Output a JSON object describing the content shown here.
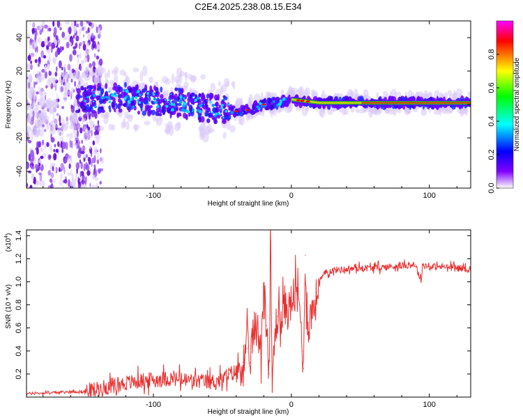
{
  "title": "C2E4.2025.238.08.15.E34",
  "chart_data": [
    {
      "type": "heatmap",
      "title": "C2E4.2025.238.08.15.E34",
      "xlabel": "Height of straight line (km)",
      "ylabel": "Frequency (Hz)",
      "xlim": [
        -192,
        130
      ],
      "ylim": [
        -50,
        50
      ],
      "xticks": [
        -100,
        0,
        100
      ],
      "yticks": [
        -40,
        -20,
        0,
        20,
        40
      ],
      "ridge": {
        "x": [
          -192,
          -150,
          -120,
          -100,
          -80,
          -60,
          -50,
          -40,
          -30,
          -20,
          -10,
          0,
          10,
          20,
          40,
          60,
          80,
          100,
          130
        ],
        "freq": [
          0,
          3,
          4,
          2,
          1,
          -2,
          -3,
          -4,
          -3,
          0,
          1,
          3,
          2,
          1,
          1,
          1,
          1,
          1,
          1
        ]
      },
      "colorbar": {
        "label": "Normalized spectral amplitude",
        "ticks": [
          0.0,
          0.2,
          0.4,
          0.6,
          0.8
        ],
        "tick_labels": [
          "0.0",
          "0.2",
          "0.4",
          "0.6",
          "0.8"
        ],
        "range": [
          0,
          1
        ],
        "colors": [
          "#ff00ff",
          "#ff0000",
          "#ffff00",
          "#00ff00",
          "#00ffff",
          "#0000ff",
          "#8000ff",
          "#ffffff"
        ]
      }
    },
    {
      "type": "line",
      "xlabel": "Height of straight line (km)",
      "ylabel": "SNR (10 * v/v)",
      "y_multiplier": "(x10",
      "y_exponent": "4",
      "xlim": [
        -192,
        130
      ],
      "ylim": [
        0,
        1.45
      ],
      "xticks": [
        -100,
        0,
        100
      ],
      "yticks": [
        0.2,
        0.4,
        0.6,
        0.8,
        1.0,
        1.2,
        1.4
      ],
      "ytick_labels": [
        "0.2",
        "0.4",
        "0.6",
        "0.8",
        "1.0",
        "1.2",
        "1.4"
      ],
      "series": [
        {
          "name": "SNR",
          "color": "#e83030",
          "x": [
            -192,
            -170,
            -150,
            -140,
            -130,
            -120,
            -110,
            -100,
            -90,
            -80,
            -70,
            -60,
            -50,
            -45,
            -40,
            -35,
            -32,
            -30,
            -28,
            -25,
            -22,
            -20,
            -18,
            -16,
            -15,
            -14,
            -12,
            -10,
            -8,
            -5,
            -2,
            0,
            2,
            4,
            6,
            8,
            9,
            10,
            12,
            15,
            18,
            20,
            25,
            30,
            40,
            50,
            60,
            70,
            80,
            90,
            94,
            95,
            100,
            110,
            120,
            130
          ],
          "values": [
            0.03,
            0.04,
            0.05,
            0.07,
            0.1,
            0.12,
            0.14,
            0.15,
            0.16,
            0.15,
            0.14,
            0.13,
            0.15,
            0.2,
            0.22,
            0.3,
            0.42,
            0.3,
            0.55,
            0.6,
            0.45,
            0.98,
            0.62,
            0.2,
            1.45,
            0.05,
            0.55,
            0.7,
            0.6,
            0.8,
            0.75,
            0.82,
            0.9,
            0.85,
            0.8,
            0.4,
            0.25,
            1.23,
            0.6,
            0.75,
            0.85,
            1.0,
            1.08,
            1.1,
            1.11,
            1.12,
            1.12,
            1.13,
            1.14,
            1.15,
            1.0,
            1.15,
            1.13,
            1.13,
            1.12,
            1.11
          ]
        }
      ]
    }
  ]
}
